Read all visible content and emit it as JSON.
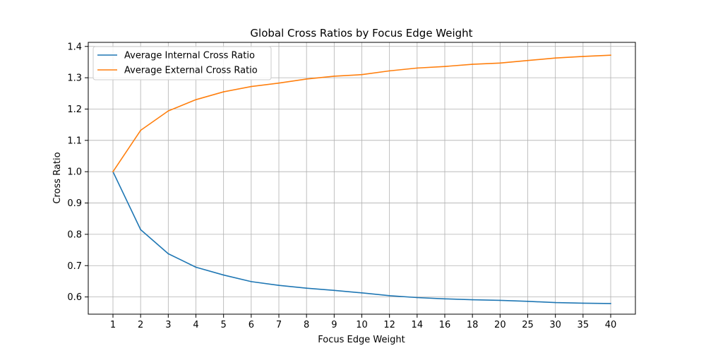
{
  "chart_data": {
    "type": "line",
    "title": "Global Cross Ratios by Focus Edge Weight",
    "xlabel": "Focus Edge Weight",
    "ylabel": "Cross Ratio",
    "x": [
      "1",
      "2",
      "3",
      "4",
      "5",
      "6",
      "7",
      "8",
      "9",
      "10",
      "12",
      "14",
      "16",
      "18",
      "20",
      "25",
      "30",
      "35",
      "40"
    ],
    "ylim": [
      0.545,
      1.413
    ],
    "yticks": [
      0.6,
      0.7,
      0.8,
      0.9,
      1.0,
      1.1,
      1.2,
      1.3,
      1.4
    ],
    "ytick_labels": [
      "0.6",
      "0.7",
      "0.8",
      "0.9",
      "1.0",
      "1.1",
      "1.2",
      "1.3",
      "1.4"
    ],
    "grid": true,
    "legend_position": "top-left",
    "series": [
      {
        "name": "Average Internal Cross Ratio",
        "color": "#1f77b4",
        "values": [
          1.0,
          0.815,
          0.738,
          0.695,
          0.67,
          0.649,
          0.637,
          0.628,
          0.621,
          0.613,
          0.604,
          0.598,
          0.594,
          0.591,
          0.589,
          0.586,
          0.582,
          0.58,
          0.579
        ]
      },
      {
        "name": "Average External Cross Ratio",
        "color": "#ff7f0e",
        "values": [
          1.0,
          1.132,
          1.194,
          1.23,
          1.255,
          1.272,
          1.283,
          1.296,
          1.305,
          1.31,
          1.322,
          1.331,
          1.336,
          1.343,
          1.347,
          1.355,
          1.363,
          1.368,
          1.372
        ]
      }
    ]
  }
}
